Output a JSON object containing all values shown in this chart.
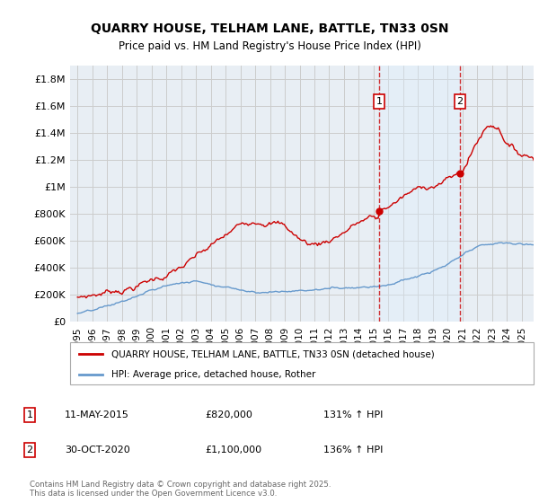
{
  "title": "QUARRY HOUSE, TELHAM LANE, BATTLE, TN33 0SN",
  "subtitle": "Price paid vs. HM Land Registry's House Price Index (HPI)",
  "footer": "Contains HM Land Registry data © Crown copyright and database right 2025.\nThis data is licensed under the Open Government Licence v3.0.",
  "legend_label_red": "QUARRY HOUSE, TELHAM LANE, BATTLE, TN33 0SN (detached house)",
  "legend_label_blue": "HPI: Average price, detached house, Rother",
  "annotation1_date": "11-MAY-2015",
  "annotation1_price": "£820,000",
  "annotation1_hpi": "131% ↑ HPI",
  "annotation2_date": "30-OCT-2020",
  "annotation2_price": "£1,100,000",
  "annotation2_hpi": "136% ↑ HPI",
  "red_color": "#cc0000",
  "blue_color": "#6699cc",
  "blue_fill_color": "#ddeeff",
  "vline_color": "#cc0000",
  "grid_color": "#cccccc",
  "bg_color": "#e8eef4",
  "ylim": [
    0,
    1900000
  ],
  "yticks": [
    0,
    200000,
    400000,
    600000,
    800000,
    1000000,
    1200000,
    1400000,
    1600000,
    1800000
  ],
  "ytick_labels": [
    "£0",
    "£200K",
    "£400K",
    "£600K",
    "£800K",
    "£1M",
    "£1.2M",
    "£1.4M",
    "£1.6M",
    "£1.8M"
  ],
  "vline1_x": 2015.36,
  "vline2_x": 2020.83,
  "sale1_y": 820000,
  "sale2_y": 1100000,
  "xlim_left": 1994.5,
  "xlim_right": 2025.8
}
